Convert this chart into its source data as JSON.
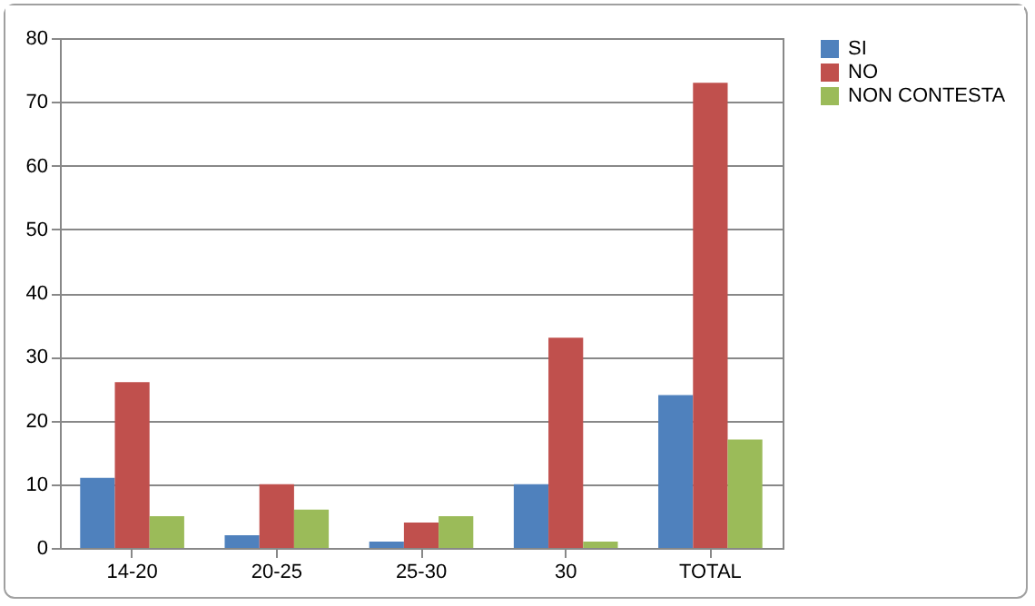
{
  "chart_data": {
    "type": "bar",
    "categories": [
      "14-20",
      "20-25",
      "25-30",
      "30",
      "TOTAL"
    ],
    "series": [
      {
        "name": "SI",
        "color": "#4f81bd",
        "values": [
          11,
          2,
          1,
          10,
          24
        ]
      },
      {
        "name": "NO",
        "color": "#c0504d",
        "values": [
          26,
          10,
          4,
          33,
          73
        ]
      },
      {
        "name": "NON CONTESTA",
        "color": "#9bbb59",
        "values": [
          5,
          6,
          5,
          1,
          17
        ]
      }
    ],
    "ylim": [
      0,
      80
    ],
    "yticks": [
      0,
      10,
      20,
      30,
      40,
      50,
      60,
      70,
      80
    ],
    "grid": "y",
    "legend": "right"
  }
}
